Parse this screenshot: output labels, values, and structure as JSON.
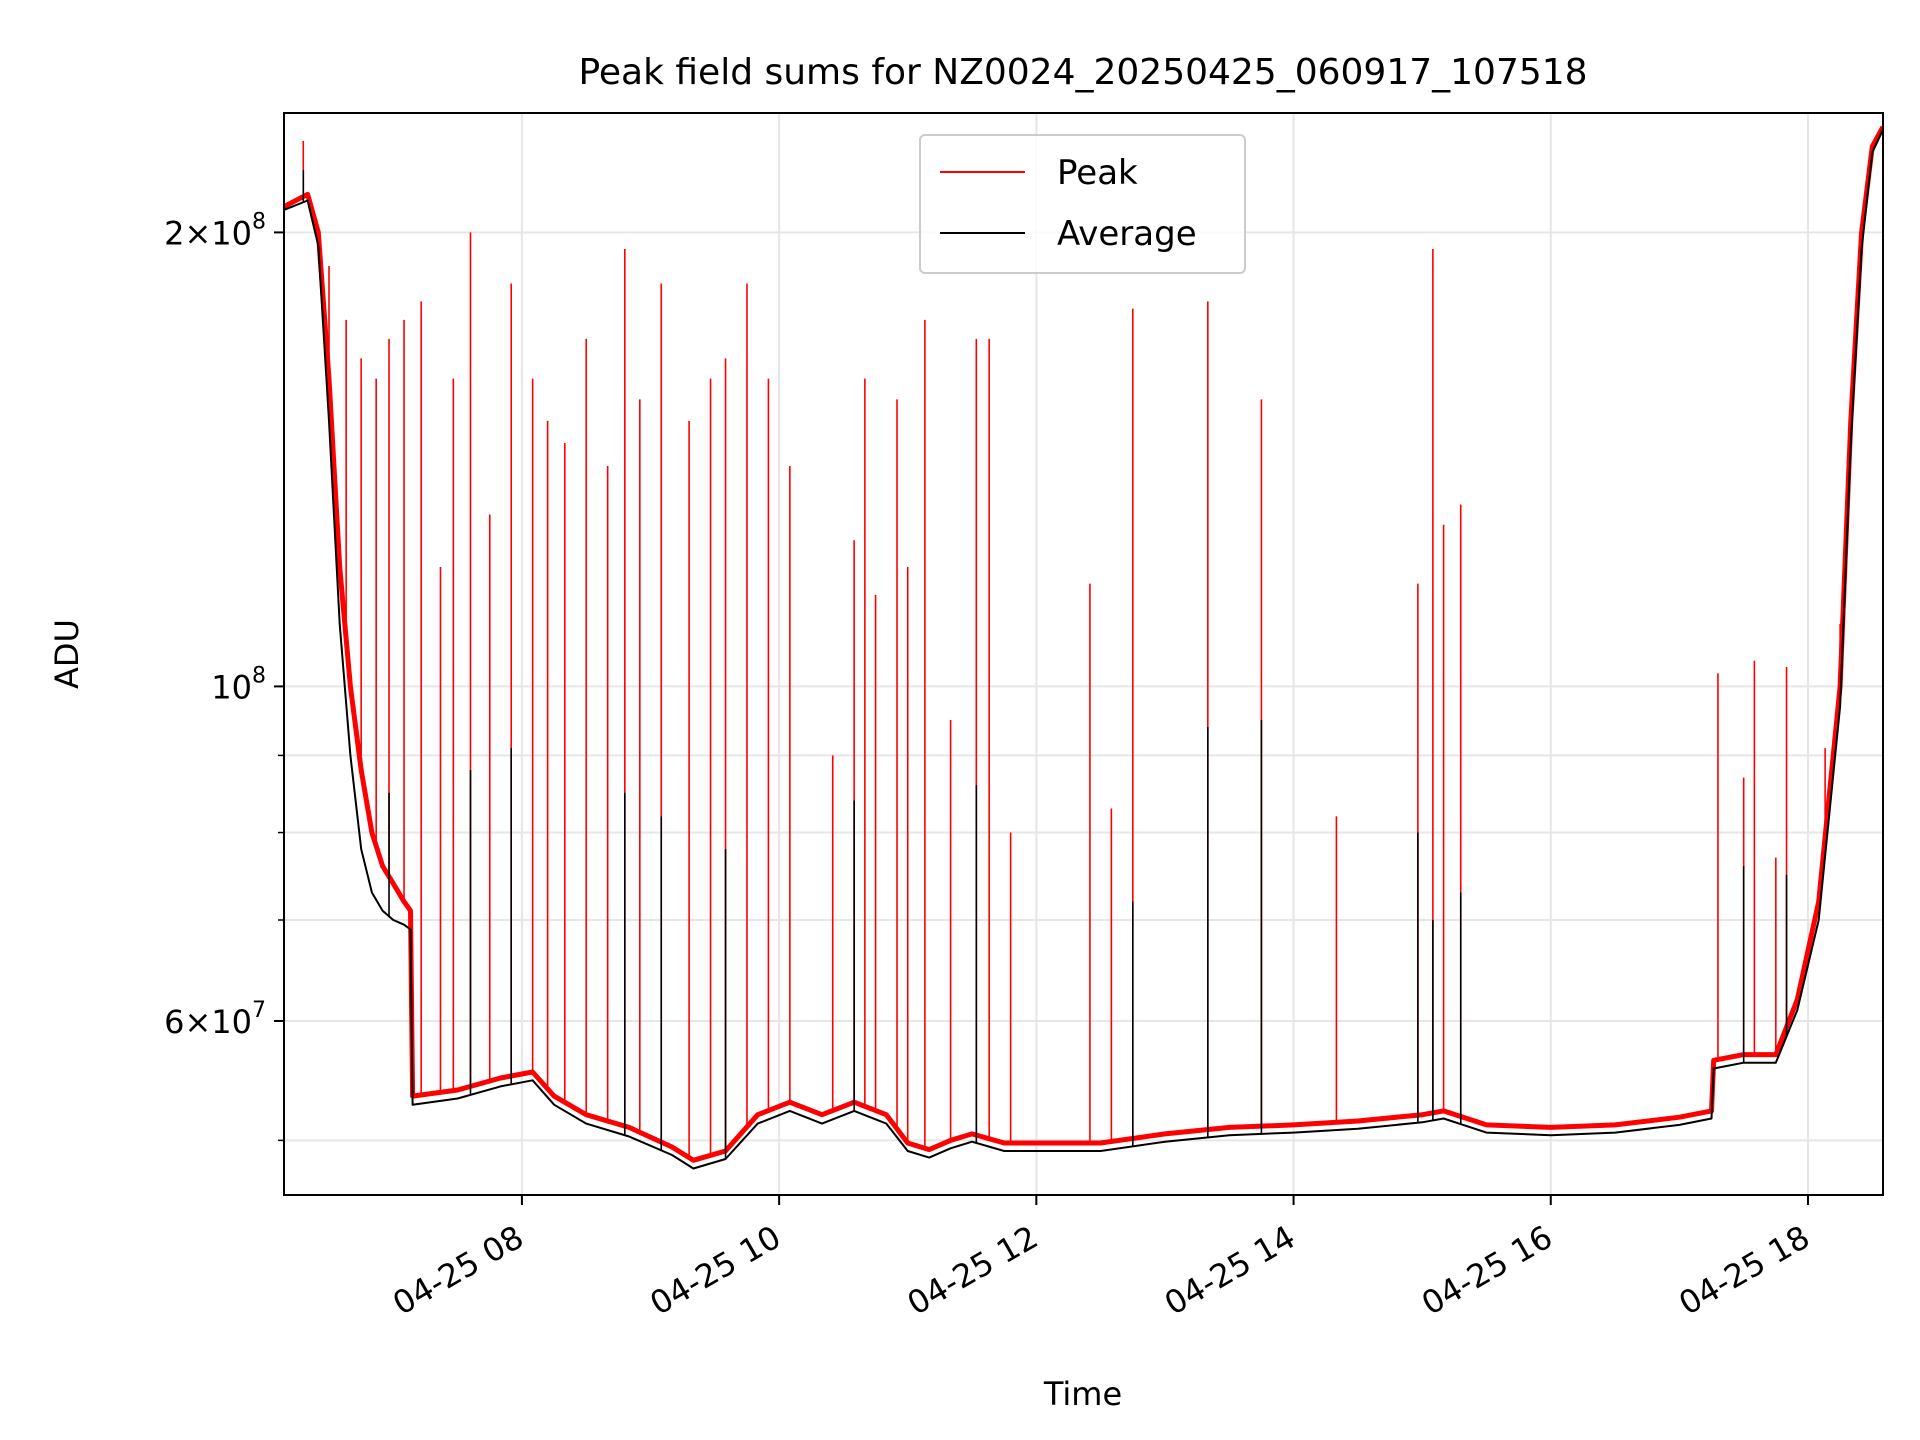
{
  "chart_data": {
    "type": "line",
    "title": "Peak field sums for NZ0024_20250425_060917_107518",
    "xlabel": "Time",
    "ylabel": "ADU",
    "y_scale": "log",
    "ylim": [
      46000000,
      240000000
    ],
    "xlim": [
      "2025-04-25T06:09",
      "2025-04-25T18:35"
    ],
    "grid": true,
    "legend_position": "top-center",
    "x_tick_labels": [
      "04-25 08",
      "04-25 10",
      "04-25 12",
      "04-25 14",
      "04-25 16",
      "04-25 18"
    ],
    "x_tick_values": [
      "2025-04-25T08:00",
      "2025-04-25T10:00",
      "2025-04-25T12:00",
      "2025-04-25T14:00",
      "2025-04-25T16:00",
      "2025-04-25T18:00"
    ],
    "y_major_ticks": [
      {
        "value": 60000000,
        "mantissa": "6",
        "exponent": "7"
      },
      {
        "value": 100000000,
        "mantissa": "",
        "exponent": "8"
      },
      {
        "value": 200000000,
        "mantissa": "2",
        "exponent": "8"
      }
    ],
    "y_minor_ticks": [
      50000000,
      70000000,
      80000000,
      90000000
    ],
    "colors": {
      "peak": "#ff0000",
      "average": "#000000"
    },
    "series": [
      {
        "name": "Peak",
        "color": "#ff0000",
        "points": [
          [
            "2025-04-25T06:09",
            208000000
          ],
          [
            "2025-04-25T06:20",
            212000000
          ],
          [
            "2025-04-25T06:25",
            200000000
          ],
          [
            "2025-04-25T06:30",
            160000000
          ],
          [
            "2025-04-25T06:35",
            120000000
          ],
          [
            "2025-04-25T06:40",
            100000000
          ],
          [
            "2025-04-25T06:45",
            88000000
          ],
          [
            "2025-04-25T06:50",
            80000000
          ],
          [
            "2025-04-25T06:55",
            76000000
          ],
          [
            "2025-04-25T07:00",
            74000000
          ],
          [
            "2025-04-25T07:05",
            72000000
          ],
          [
            "2025-04-25T07:08",
            71000000
          ],
          [
            "2025-04-25T07:09",
            53500000
          ],
          [
            "2025-04-25T07:30",
            54000000
          ],
          [
            "2025-04-25T07:50",
            55000000
          ],
          [
            "2025-04-25T08:05",
            55500000
          ],
          [
            "2025-04-25T08:15",
            53500000
          ],
          [
            "2025-04-25T08:30",
            52000000
          ],
          [
            "2025-04-25T08:50",
            51000000
          ],
          [
            "2025-04-25T09:10",
            49500000
          ],
          [
            "2025-04-25T09:20",
            48500000
          ],
          [
            "2025-04-25T09:35",
            49200000
          ],
          [
            "2025-04-25T09:50",
            52000000
          ],
          [
            "2025-04-25T10:05",
            53000000
          ],
          [
            "2025-04-25T10:20",
            52000000
          ],
          [
            "2025-04-25T10:35",
            53000000
          ],
          [
            "2025-04-25T10:50",
            52000000
          ],
          [
            "2025-04-25T11:00",
            49800000
          ],
          [
            "2025-04-25T11:10",
            49300000
          ],
          [
            "2025-04-25T11:20",
            50000000
          ],
          [
            "2025-04-25T11:30",
            50500000
          ],
          [
            "2025-04-25T11:45",
            49800000
          ],
          [
            "2025-04-25T12:00",
            49800000
          ],
          [
            "2025-04-25T12:30",
            49800000
          ],
          [
            "2025-04-25T13:00",
            50500000
          ],
          [
            "2025-04-25T13:30",
            51000000
          ],
          [
            "2025-04-25T14:00",
            51200000
          ],
          [
            "2025-04-25T14:30",
            51500000
          ],
          [
            "2025-04-25T15:00",
            52000000
          ],
          [
            "2025-04-25T15:10",
            52300000
          ],
          [
            "2025-04-25T15:30",
            51200000
          ],
          [
            "2025-04-25T16:00",
            51000000
          ],
          [
            "2025-04-25T16:30",
            51200000
          ],
          [
            "2025-04-25T17:00",
            51800000
          ],
          [
            "2025-04-25T17:15",
            52300000
          ],
          [
            "2025-04-25T17:16",
            56500000
          ],
          [
            "2025-04-25T17:30",
            57000000
          ],
          [
            "2025-04-25T17:45",
            57000000
          ],
          [
            "2025-04-25T17:55",
            62000000
          ],
          [
            "2025-04-25T18:05",
            72000000
          ],
          [
            "2025-04-25T18:15",
            100000000
          ],
          [
            "2025-04-25T18:20",
            150000000
          ],
          [
            "2025-04-25T18:25",
            200000000
          ],
          [
            "2025-04-25T18:30",
            228000000
          ],
          [
            "2025-04-25T18:35",
            235000000
          ]
        ],
        "spikes": [
          [
            "2025-04-25T06:18",
            230000000
          ],
          [
            "2025-04-25T06:25",
            195000000
          ],
          [
            "2025-04-25T06:30",
            190000000
          ],
          [
            "2025-04-25T06:38",
            175000000
          ],
          [
            "2025-04-25T06:45",
            165000000
          ],
          [
            "2025-04-25T06:52",
            160000000
          ],
          [
            "2025-04-25T06:58",
            170000000
          ],
          [
            "2025-04-25T07:05",
            175000000
          ],
          [
            "2025-04-25T07:13",
            180000000
          ],
          [
            "2025-04-25T07:22",
            120000000
          ],
          [
            "2025-04-25T07:28",
            160000000
          ],
          [
            "2025-04-25T07:36",
            200000000
          ],
          [
            "2025-04-25T07:45",
            130000000
          ],
          [
            "2025-04-25T07:55",
            185000000
          ],
          [
            "2025-04-25T08:05",
            160000000
          ],
          [
            "2025-04-25T08:12",
            150000000
          ],
          [
            "2025-04-25T08:20",
            145000000
          ],
          [
            "2025-04-25T08:30",
            170000000
          ],
          [
            "2025-04-25T08:40",
            140000000
          ],
          [
            "2025-04-25T08:48",
            195000000
          ],
          [
            "2025-04-25T08:55",
            155000000
          ],
          [
            "2025-04-25T09:05",
            185000000
          ],
          [
            "2025-04-25T09:18",
            150000000
          ],
          [
            "2025-04-25T09:28",
            160000000
          ],
          [
            "2025-04-25T09:35",
            165000000
          ],
          [
            "2025-04-25T09:45",
            185000000
          ],
          [
            "2025-04-25T09:55",
            160000000
          ],
          [
            "2025-04-25T10:05",
            140000000
          ],
          [
            "2025-04-25T10:25",
            90000000
          ],
          [
            "2025-04-25T10:35",
            125000000
          ],
          [
            "2025-04-25T10:40",
            160000000
          ],
          [
            "2025-04-25T10:45",
            115000000
          ],
          [
            "2025-04-25T10:55",
            155000000
          ],
          [
            "2025-04-25T11:00",
            120000000
          ],
          [
            "2025-04-25T11:08",
            175000000
          ],
          [
            "2025-04-25T11:20",
            95000000
          ],
          [
            "2025-04-25T11:32",
            170000000
          ],
          [
            "2025-04-25T11:38",
            170000000
          ],
          [
            "2025-04-25T11:48",
            80000000
          ],
          [
            "2025-04-25T12:25",
            117000000
          ],
          [
            "2025-04-25T12:35",
            83000000
          ],
          [
            "2025-04-25T12:45",
            178000000
          ],
          [
            "2025-04-25T13:20",
            180000000
          ],
          [
            "2025-04-25T13:45",
            155000000
          ],
          [
            "2025-04-25T14:20",
            82000000
          ],
          [
            "2025-04-25T14:58",
            117000000
          ],
          [
            "2025-04-25T15:05",
            195000000
          ],
          [
            "2025-04-25T15:10",
            128000000
          ],
          [
            "2025-04-25T15:18",
            132000000
          ],
          [
            "2025-04-25T17:18",
            102000000
          ],
          [
            "2025-04-25T17:30",
            87000000
          ],
          [
            "2025-04-25T17:35",
            104000000
          ],
          [
            "2025-04-25T17:45",
            77000000
          ],
          [
            "2025-04-25T17:50",
            103000000
          ],
          [
            "2025-04-25T18:08",
            91000000
          ],
          [
            "2025-04-25T18:15",
            110000000
          ]
        ]
      },
      {
        "name": "Average",
        "color": "#000000",
        "points": [
          [
            "2025-04-25T06:09",
            207000000
          ],
          [
            "2025-04-25T06:20",
            210000000
          ],
          [
            "2025-04-25T06:25",
            196000000
          ],
          [
            "2025-04-25T06:30",
            150000000
          ],
          [
            "2025-04-25T06:35",
            110000000
          ],
          [
            "2025-04-25T06:40",
            90000000
          ],
          [
            "2025-04-25T06:45",
            78000000
          ],
          [
            "2025-04-25T06:50",
            73000000
          ],
          [
            "2025-04-25T06:55",
            71000000
          ],
          [
            "2025-04-25T07:00",
            70000000
          ],
          [
            "2025-04-25T07:05",
            69500000
          ],
          [
            "2025-04-25T07:08",
            69000000
          ],
          [
            "2025-04-25T07:09",
            52800000
          ],
          [
            "2025-04-25T07:30",
            53300000
          ],
          [
            "2025-04-25T07:50",
            54300000
          ],
          [
            "2025-04-25T08:05",
            54800000
          ],
          [
            "2025-04-25T08:15",
            52800000
          ],
          [
            "2025-04-25T08:30",
            51300000
          ],
          [
            "2025-04-25T08:50",
            50300000
          ],
          [
            "2025-04-25T09:10",
            48900000
          ],
          [
            "2025-04-25T09:20",
            47900000
          ],
          [
            "2025-04-25T09:35",
            48600000
          ],
          [
            "2025-04-25T09:50",
            51300000
          ],
          [
            "2025-04-25T10:05",
            52300000
          ],
          [
            "2025-04-25T10:20",
            51300000
          ],
          [
            "2025-04-25T10:35",
            52300000
          ],
          [
            "2025-04-25T10:50",
            51300000
          ],
          [
            "2025-04-25T11:00",
            49200000
          ],
          [
            "2025-04-25T11:10",
            48700000
          ],
          [
            "2025-04-25T11:20",
            49400000
          ],
          [
            "2025-04-25T11:30",
            49900000
          ],
          [
            "2025-04-25T11:45",
            49200000
          ],
          [
            "2025-04-25T12:00",
            49200000
          ],
          [
            "2025-04-25T12:30",
            49200000
          ],
          [
            "2025-04-25T13:00",
            49900000
          ],
          [
            "2025-04-25T13:30",
            50400000
          ],
          [
            "2025-04-25T14:00",
            50600000
          ],
          [
            "2025-04-25T14:30",
            50900000
          ],
          [
            "2025-04-25T15:00",
            51400000
          ],
          [
            "2025-04-25T15:10",
            51700000
          ],
          [
            "2025-04-25T15:30",
            50600000
          ],
          [
            "2025-04-25T16:00",
            50400000
          ],
          [
            "2025-04-25T16:30",
            50600000
          ],
          [
            "2025-04-25T17:00",
            51200000
          ],
          [
            "2025-04-25T17:15",
            51700000
          ],
          [
            "2025-04-25T17:16",
            55800000
          ],
          [
            "2025-04-25T17:30",
            56300000
          ],
          [
            "2025-04-25T17:45",
            56300000
          ],
          [
            "2025-04-25T17:55",
            61000000
          ],
          [
            "2025-04-25T18:05",
            70000000
          ],
          [
            "2025-04-25T18:15",
            97000000
          ],
          [
            "2025-04-25T18:20",
            145000000
          ],
          [
            "2025-04-25T18:25",
            195000000
          ],
          [
            "2025-04-25T18:30",
            226000000
          ],
          [
            "2025-04-25T18:35",
            234000000
          ]
        ],
        "spikes": [
          [
            "2025-04-25T06:18",
            220000000
          ],
          [
            "2025-04-25T06:58",
            85000000
          ],
          [
            "2025-04-25T07:36",
            88000000
          ],
          [
            "2025-04-25T07:55",
            91000000
          ],
          [
            "2025-04-25T08:48",
            85000000
          ],
          [
            "2025-04-25T09:05",
            82000000
          ],
          [
            "2025-04-25T09:35",
            78000000
          ],
          [
            "2025-04-25T10:35",
            84000000
          ],
          [
            "2025-04-25T11:32",
            86000000
          ],
          [
            "2025-04-25T12:45",
            72000000
          ],
          [
            "2025-04-25T13:20",
            94000000
          ],
          [
            "2025-04-25T13:45",
            95000000
          ],
          [
            "2025-04-25T14:58",
            80000000
          ],
          [
            "2025-04-25T15:05",
            70000000
          ],
          [
            "2025-04-25T15:18",
            73000000
          ],
          [
            "2025-04-25T17:30",
            76000000
          ],
          [
            "2025-04-25T17:50",
            75000000
          ]
        ]
      }
    ]
  }
}
